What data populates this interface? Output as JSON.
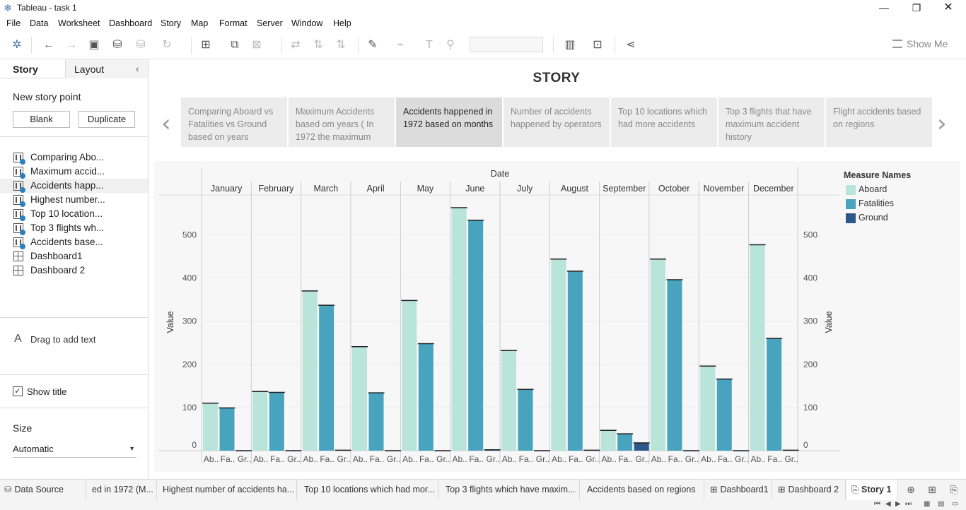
{
  "window": {
    "title": "Tableau - task 1"
  },
  "menu": [
    "File",
    "Data",
    "Worksheet",
    "Dashboard",
    "Story",
    "Map",
    "Format",
    "Server",
    "Window",
    "Help"
  ],
  "toolbar": {
    "show_me": "Show Me"
  },
  "left_panel": {
    "tab_story": "Story",
    "tab_layout": "Layout",
    "new_story_point": "New story point",
    "blank_button": "Blank",
    "duplicate_button": "Duplicate",
    "items": [
      {
        "label": "Comparing Abo...",
        "type": "sheet"
      },
      {
        "label": "Maximum accid...",
        "type": "sheet"
      },
      {
        "label": "Accidents happ...",
        "type": "sheet"
      },
      {
        "label": "Highest number...",
        "type": "sheet"
      },
      {
        "label": "Top 10 location...",
        "type": "sheet"
      },
      {
        "label": "Top 3 flights wh...",
        "type": "sheet"
      },
      {
        "label": "Accidents base...",
        "type": "sheet"
      },
      {
        "label": "Dashboard1",
        "type": "dashboard"
      },
      {
        "label": "Dashboard 2",
        "type": "dashboard"
      }
    ],
    "drag_text": "Drag to add text",
    "show_title": "Show title",
    "size_heading": "Size",
    "size_value": "Automatic"
  },
  "story": {
    "title": "STORY",
    "points": [
      "Comparing Aboard vs Fatalities vs Ground based on years",
      "Maximum Accidents based om years ( In 1972 the maximum",
      "Accidents happened in 1972 based on months",
      "Number of accidents happened by operators",
      "Top 10 locations which had more accidents",
      "Top 3 flights that have maximum accident history",
      "Flight accidents based on regions"
    ],
    "selected_index": 2
  },
  "legend": {
    "title": "Measure Names",
    "items": [
      {
        "name": "Aboard",
        "color": "#b9e4da"
      },
      {
        "name": "Fatalities",
        "color": "#47a3be"
      },
      {
        "name": "Ground",
        "color": "#2e5888"
      }
    ]
  },
  "chart_data": {
    "type": "bar",
    "column_header": "Date",
    "ylabel": "Value",
    "ylabel_right": "Value",
    "ylim": [
      0,
      560
    ],
    "yticks": [
      0,
      100,
      200,
      300,
      400,
      500
    ],
    "sub_labels": [
      "Ab..",
      "Fa..",
      "Gr.."
    ],
    "categories": [
      "January",
      "February",
      "March",
      "April",
      "May",
      "June",
      "July",
      "August",
      "September",
      "October",
      "November",
      "December"
    ],
    "series": [
      {
        "name": "Aboard",
        "values": [
          110,
          137,
          370,
          241,
          348,
          563,
          232,
          444,
          47,
          444,
          196,
          477
        ]
      },
      {
        "name": "Fatalities",
        "values": [
          99,
          135,
          337,
          134,
          248,
          534,
          142,
          416,
          39,
          396,
          166,
          260
        ]
      },
      {
        "name": "Ground",
        "values": [
          0,
          0,
          1,
          0,
          0,
          2,
          0,
          1,
          18,
          0,
          0,
          1
        ]
      }
    ]
  },
  "bottom_tabs": [
    {
      "label": "Data Source",
      "active": false
    },
    {
      "label": "ed in 1972 (M...",
      "active": false
    },
    {
      "label": "Highest number of accidents ha...",
      "active": false
    },
    {
      "label": "Top 10 locations which had mor...",
      "active": false
    },
    {
      "label": "Top 3 flights which have maxim...",
      "active": false
    },
    {
      "label": "Accidents based on regions",
      "active": false
    },
    {
      "label": "Dashboard1",
      "active": false
    },
    {
      "label": "Dashboard 2",
      "active": false
    },
    {
      "label": "Story 1",
      "active": true
    }
  ]
}
